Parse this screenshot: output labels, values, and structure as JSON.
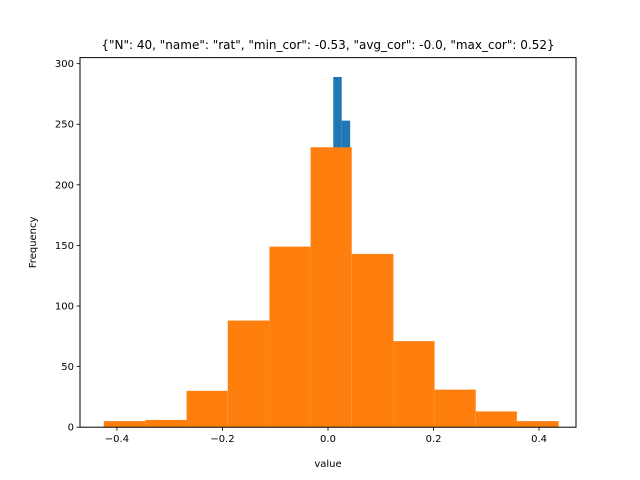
{
  "chart_data": {
    "type": "bar",
    "title": "{\"N\": 40, \"name\": \"rat\", \"min_cor\": -0.53, \"avg_cor\": -0.0, \"max_cor\": 0.52}",
    "xlabel": "value",
    "ylabel": "Frequency",
    "xlim": [
      -0.47,
      0.47
    ],
    "ylim": [
      0,
      305
    ],
    "x_ticks": [
      -0.4,
      -0.2,
      0.0,
      0.2,
      0.4
    ],
    "x_tick_labels": [
      "−0.4",
      "−0.2",
      "0.0",
      "0.2",
      "0.4"
    ],
    "y_ticks": [
      0,
      50,
      100,
      150,
      200,
      250,
      300
    ],
    "y_tick_labels": [
      "0",
      "50",
      "100",
      "150",
      "200",
      "250",
      "300"
    ],
    "grid": false,
    "series": [
      {
        "color": "#1f77b4",
        "bins": [
          {
            "x0": 0.01,
            "x1": 0.026,
            "value": 289
          },
          {
            "x0": 0.026,
            "x1": 0.042,
            "value": 253
          }
        ]
      },
      {
        "color": "#ff7f0e",
        "bins": [
          {
            "x0": -0.425,
            "x1": -0.346,
            "value": 5
          },
          {
            "x0": -0.346,
            "x1": -0.268,
            "value": 6
          },
          {
            "x0": -0.268,
            "x1": -0.19,
            "value": 30
          },
          {
            "x0": -0.19,
            "x1": -0.111,
            "value": 88
          },
          {
            "x0": -0.111,
            "x1": -0.033,
            "value": 149
          },
          {
            "x0": -0.033,
            "x1": 0.045,
            "value": 231
          },
          {
            "x0": 0.045,
            "x1": 0.124,
            "value": 143
          },
          {
            "x0": 0.124,
            "x1": 0.202,
            "value": 71
          },
          {
            "x0": 0.202,
            "x1": 0.28,
            "value": 31
          },
          {
            "x0": 0.28,
            "x1": 0.358,
            "value": 13
          },
          {
            "x0": 0.358,
            "x1": 0.437,
            "value": 5
          }
        ]
      }
    ]
  }
}
